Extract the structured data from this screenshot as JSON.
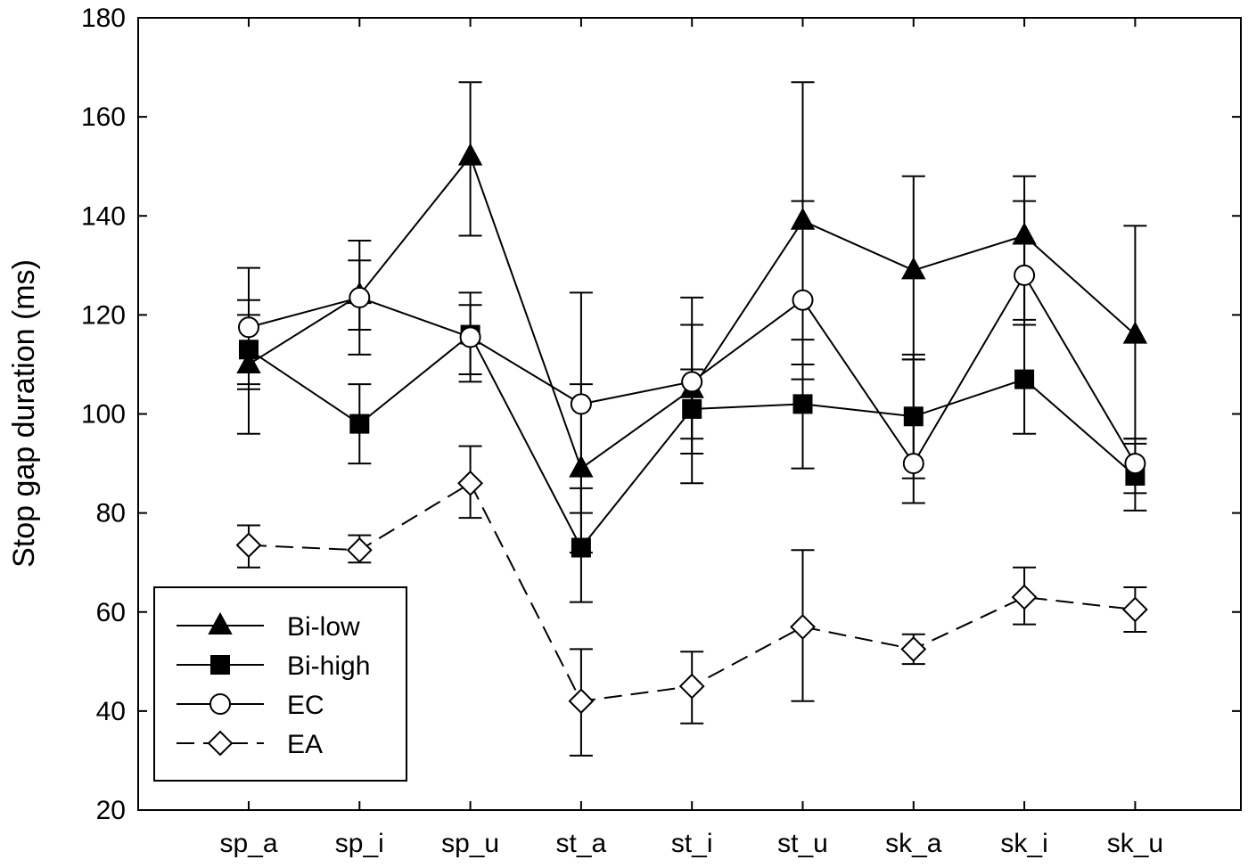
{
  "chart_data": {
    "type": "line",
    "title": "",
    "xlabel": "",
    "ylabel": "Stop gap duration (ms)",
    "ylim": [
      20,
      180
    ],
    "yticks": [
      20,
      40,
      60,
      80,
      100,
      120,
      140,
      160,
      180
    ],
    "grid": false,
    "legend_position": "bottom-left",
    "categories": [
      "sp_a",
      "sp_i",
      "sp_u",
      "st_a",
      "st_i",
      "st_u",
      "sk_a",
      "sk_i",
      "sk_u"
    ],
    "series": [
      {
        "name": "Bi-low",
        "marker": "triangle",
        "fill": "#000000",
        "dash": "solid",
        "values": [
          110,
          124,
          152,
          89,
          105,
          139,
          129,
          136,
          116
        ],
        "error_low": [
          96,
          117,
          136,
          72,
          92,
          107,
          111,
          119,
          95
        ],
        "error_high": [
          123,
          131,
          167,
          106,
          118,
          167,
          148,
          148,
          138
        ]
      },
      {
        "name": "Bi-high",
        "marker": "square",
        "fill": "#000000",
        "dash": "solid",
        "values": [
          113,
          98,
          116,
          73,
          101,
          102,
          99.5,
          107,
          87.5
        ],
        "error_low": [
          106,
          90,
          108,
          62,
          86,
          89,
          87,
          96,
          84
        ],
        "error_high": [
          120,
          106,
          122,
          85,
          109,
          115,
          111,
          118,
          94
        ]
      },
      {
        "name": "EC",
        "marker": "circle",
        "fill": "#ffffff",
        "dash": "solid",
        "values": [
          117.5,
          123.5,
          115.5,
          102,
          106.5,
          123,
          90,
          128,
          90
        ],
        "error_low": [
          105,
          112,
          106.5,
          80,
          95,
          110,
          82,
          118,
          80.5
        ],
        "error_high": [
          129.5,
          135,
          124.5,
          124.5,
          123.5,
          143,
          112,
          143,
          95
        ]
      },
      {
        "name": "EA",
        "marker": "diamond",
        "fill": "#ffffff",
        "dash": "dashed",
        "values": [
          73.5,
          72.5,
          86,
          42,
          45,
          57,
          52.5,
          63,
          60.5
        ],
        "error_low": [
          69,
          70,
          79,
          31,
          37.5,
          42,
          49.5,
          57.5,
          56
        ],
        "error_high": [
          77.5,
          75.5,
          93.5,
          52.5,
          52,
          72.5,
          55.5,
          69,
          65
        ]
      }
    ]
  }
}
